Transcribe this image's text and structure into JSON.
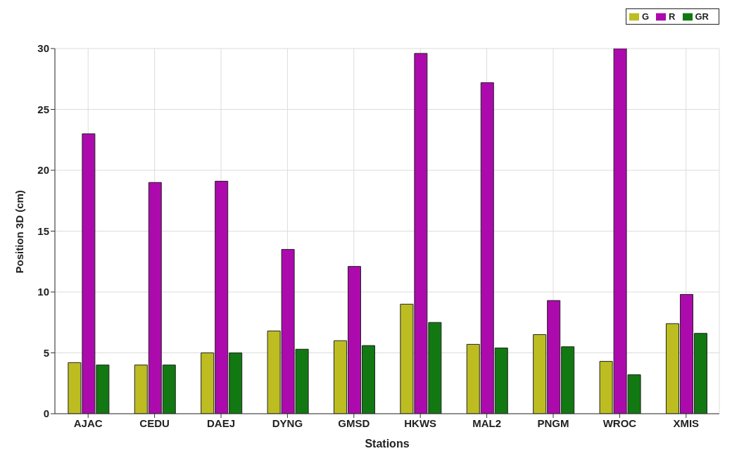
{
  "chart_data": {
    "type": "bar",
    "xlabel": "Stations",
    "ylabel": "Position 3D (cm)",
    "categories": [
      "AJAC",
      "CEDU",
      "DAEJ",
      "DYNG",
      "GMSD",
      "HKWS",
      "MAL2",
      "PNGM",
      "WROC",
      "XMIS"
    ],
    "series": [
      {
        "name": "G",
        "color": "#bdbd22",
        "values": [
          4.2,
          4.0,
          5.0,
          6.8,
          6.0,
          9.0,
          5.7,
          6.5,
          4.3,
          7.4
        ]
      },
      {
        "name": "R",
        "color": "#ac0aac",
        "values": [
          23.0,
          19.0,
          19.1,
          13.5,
          12.1,
          29.6,
          27.2,
          9.3,
          30,
          9.8
        ]
      },
      {
        "name": "GR",
        "color": "#127812",
        "values": [
          4.0,
          4.0,
          5.0,
          5.3,
          5.6,
          7.5,
          5.4,
          5.5,
          3.2,
          6.6
        ]
      }
    ],
    "ylim": [
      0,
      30
    ],
    "yticks": [
      0,
      5,
      10,
      15,
      20,
      25,
      30
    ],
    "grid": true,
    "legend": "top right"
  }
}
